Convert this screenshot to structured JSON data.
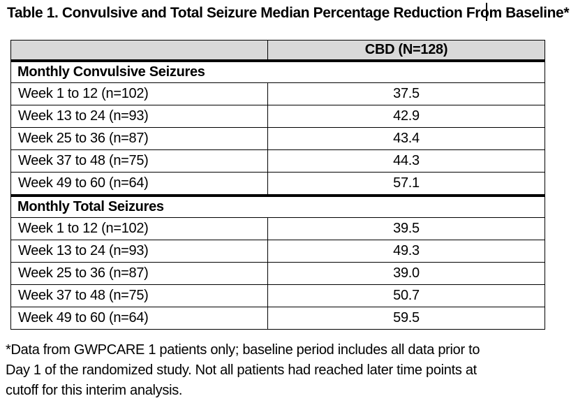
{
  "title": "Table 1. Convulsive and Total Seizure Median Percentage Reduction From Baseline*",
  "table": {
    "columns": [
      "",
      "CBD (N=128)"
    ],
    "sections": [
      {
        "label": "Monthly Convulsive Seizures",
        "rows": [
          {
            "period": "Week 1 to 12 (n=102)",
            "value": "37.5"
          },
          {
            "period": "Week 13 to 24 (n=93)",
            "value": "42.9"
          },
          {
            "period": "Week 25 to 36 (n=87)",
            "value": "43.4"
          },
          {
            "period": "Week 37 to 48 (n=75)",
            "value": "44.3"
          },
          {
            "period": "Week 49 to 60 (n=64)",
            "value": "57.1"
          }
        ]
      },
      {
        "label": "Monthly Total Seizures",
        "rows": [
          {
            "period": "Week 1 to 12 (n=102)",
            "value": "39.5"
          },
          {
            "period": "Week 13 to 24 (n=93)",
            "value": "49.3"
          },
          {
            "period": "Week 25 to 36 (n=87)",
            "value": "39.0"
          },
          {
            "period": "Week 37 to 48 (n=75)",
            "value": "50.7"
          },
          {
            "period": "Week 49 to 60 (n=64)",
            "value": "59.5"
          }
        ]
      }
    ]
  },
  "footnote": "*Data from GWPCARE 1 patients only; baseline period includes all data prior to\nDay 1 of the randomized study. Not all patients had reached later time points at\ncutoff for this interim analysis.",
  "colors": {
    "header_bg": "#d9d9d9",
    "border": "#000000",
    "text": "#000000"
  }
}
